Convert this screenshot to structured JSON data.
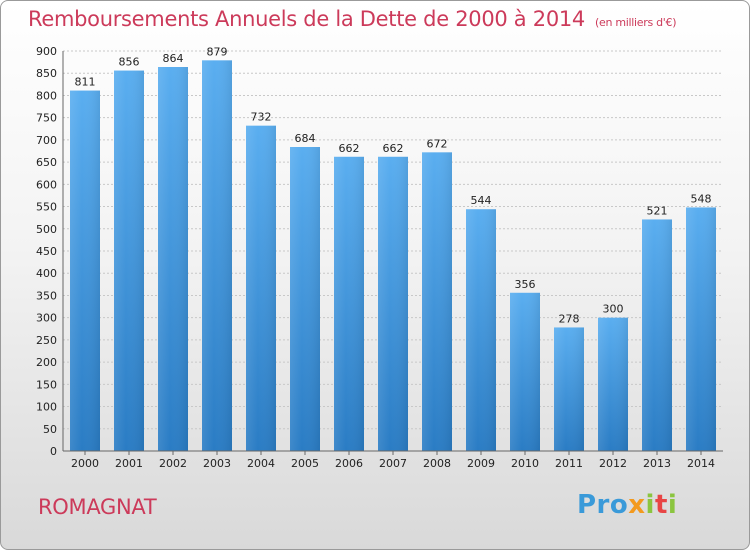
{
  "chart_title": "Remboursements Annuels de la Dette de 2000 à 2014",
  "chart_subtitle": "(en milliers d'€)",
  "commune": "ROMAGNAT",
  "logo": {
    "p1": "Pro",
    "p2": "x",
    "p3": "i",
    "p4": "t",
    "p5": "i"
  },
  "colors": {
    "title": "#cc3a5a",
    "bar_top": "#5aaef0",
    "bar_bottom": "#2a7cc4"
  },
  "chart_data": {
    "type": "bar",
    "title": "Remboursements Annuels de la Dette de 2000 à 2014",
    "subtitle": "(en milliers d'€)",
    "categories": [
      "2000",
      "2001",
      "2002",
      "2003",
      "2004",
      "2005",
      "2006",
      "2007",
      "2008",
      "2009",
      "2010",
      "2011",
      "2012",
      "2013",
      "2014"
    ],
    "values": [
      811,
      856,
      864,
      879,
      732,
      684,
      662,
      662,
      672,
      544,
      356,
      278,
      300,
      521,
      548
    ],
    "ylim": [
      0,
      900
    ],
    "ytick_step": 50,
    "xlabel": "",
    "ylabel": "",
    "grid": true
  }
}
